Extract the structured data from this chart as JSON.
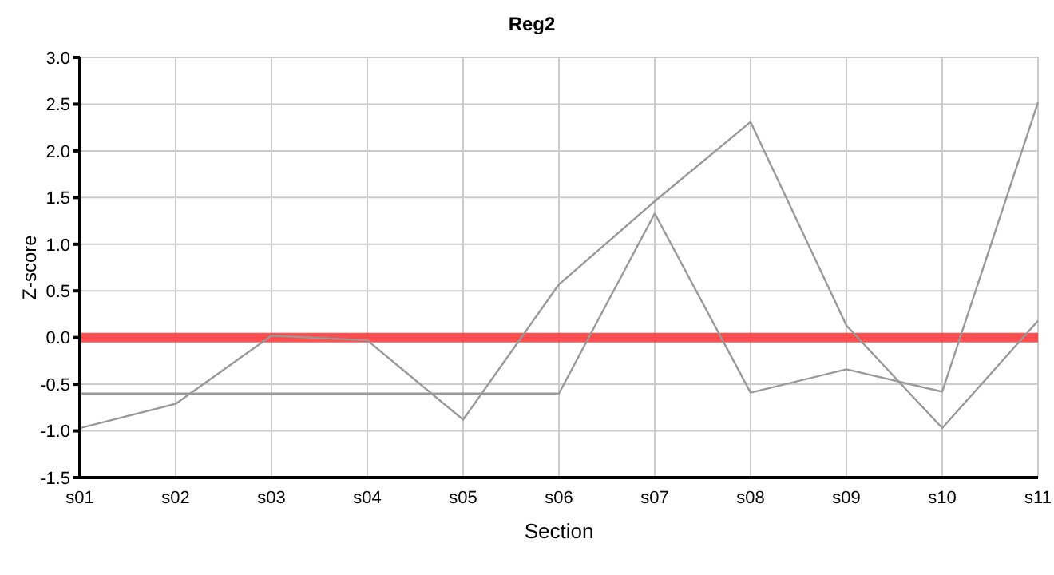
{
  "chart_data": {
    "type": "line",
    "title": "Reg2",
    "xlabel": "Section",
    "ylabel": "Z-score",
    "categories": [
      "s01",
      "s02",
      "s03",
      "s04",
      "s05",
      "s06",
      "s07",
      "s08",
      "s09",
      "s10",
      "s11"
    ],
    "series": [
      {
        "color": "#999999",
        "values": [
          -0.97,
          -0.71,
          0.02,
          -0.03,
          -0.88,
          0.57,
          1.46,
          2.31,
          0.13,
          -0.97,
          0.18
        ]
      },
      {
        "color": "#999999",
        "values": [
          -0.6,
          -0.6,
          -0.6,
          -0.6,
          -0.6,
          -0.6,
          1.33,
          -0.59,
          -0.34,
          -0.58,
          2.52
        ]
      }
    ],
    "ylim": [
      -1.5,
      3.0
    ],
    "yticks": [
      {
        "value": -1.5,
        "label": "-1.5"
      },
      {
        "value": -1,
        "label": "-1.0"
      },
      {
        "value": -0.5,
        "label": "-0.5"
      },
      {
        "value": 0,
        "label": "0.0"
      },
      {
        "value": 0.5,
        "label": "0.5"
      },
      {
        "value": 1,
        "label": "1.0"
      },
      {
        "value": 1.5,
        "label": "1.5"
      },
      {
        "value": 2,
        "label": "2.0"
      },
      {
        "value": 2.5,
        "label": "2.5"
      },
      {
        "value": 3,
        "label": "3.0"
      }
    ],
    "ref_lines": [
      {
        "axis": "y",
        "value": 0,
        "color": "#ff3333"
      }
    ],
    "grid": true,
    "marker": "none",
    "line_style": "solid",
    "legend": false
  }
}
